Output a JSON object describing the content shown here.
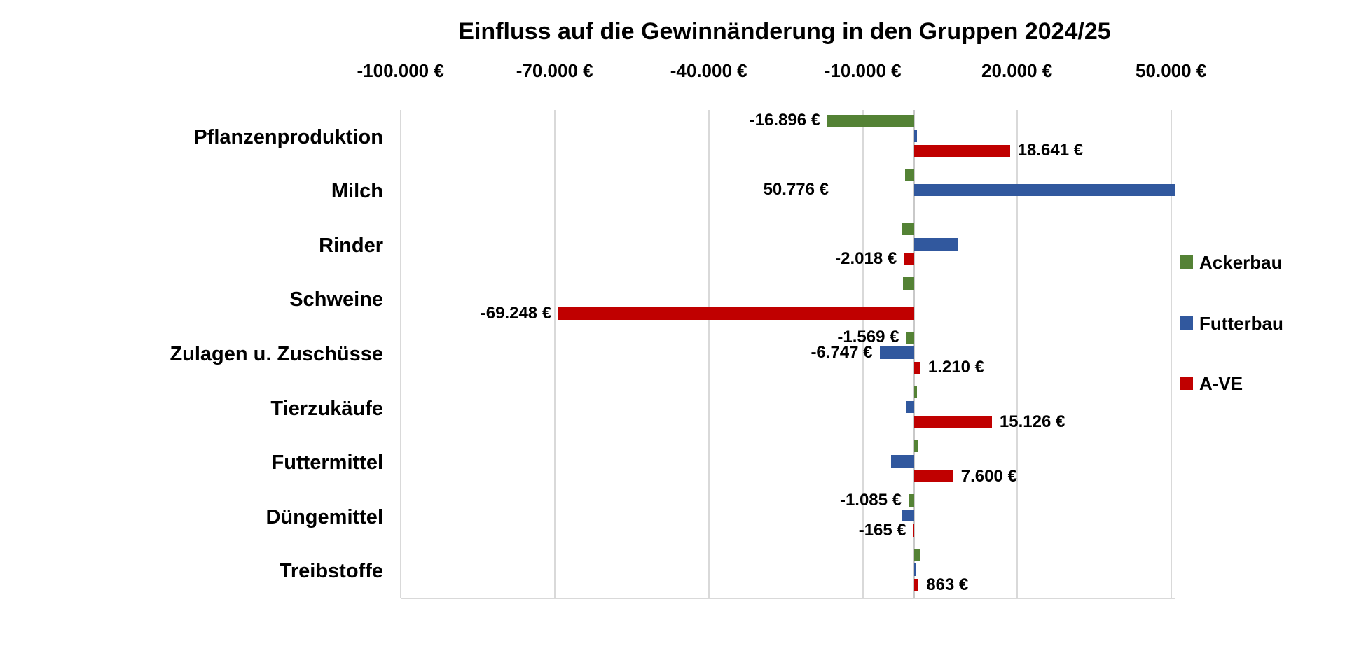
{
  "chart_data": {
    "type": "bar",
    "orientation": "horizontal",
    "title": "Einfluss auf die Gewinnänderung in den Gruppen 2024/25",
    "categories": [
      "Pflanzenproduktion",
      "Milch",
      "Rinder",
      "Schweine",
      "Zulagen u. Zuschüsse",
      "Tierzukäufe",
      "Futtermittel",
      "Düngemittel",
      "Treibstoffe"
    ],
    "series": [
      {
        "name": "Ackerbau",
        "color": "#548235",
        "values": [
          -16896,
          -1800,
          -2300,
          -2200,
          -1569,
          550,
          700,
          -1085,
          1100
        ],
        "labels": [
          "-16.896 €",
          null,
          null,
          null,
          "-1.569 €",
          null,
          null,
          "-1.085 €",
          null
        ],
        "label_sides": [
          "left",
          null,
          null,
          null,
          "left",
          null,
          null,
          "left",
          null
        ],
        "label_dx": [
          0,
          0,
          0,
          0,
          0,
          0,
          0,
          0,
          0
        ]
      },
      {
        "name": "Futterbau",
        "color": "#31589E",
        "values": [
          600,
          50776,
          8400,
          0,
          -6747,
          -1700,
          -4500,
          -2300,
          300
        ],
        "labels": [
          null,
          "50.776 €",
          null,
          null,
          "-6.747 €",
          null,
          null,
          null,
          null
        ],
        "label_sides": [
          null,
          "left",
          null,
          null,
          "left",
          null,
          null,
          null,
          null
        ],
        "label_dx": [
          0,
          -112,
          0,
          0,
          0,
          0,
          0,
          0,
          0
        ]
      },
      {
        "name": "A-VE",
        "color": "#C00000",
        "values": [
          18641,
          0,
          -2018,
          -69248,
          1210,
          15126,
          7600,
          -165,
          863
        ],
        "labels": [
          "18.641 €",
          null,
          "-2.018 €",
          "-69.248 €",
          "1.210 €",
          "15.126 €",
          "7.600 €",
          "-165 €",
          "863 €"
        ],
        "label_sides": [
          "right",
          null,
          "left",
          "left",
          "right",
          "right",
          "right",
          "left",
          "right"
        ],
        "label_dx": [
          0,
          0,
          0,
          0,
          0,
          0,
          0,
          0,
          0
        ]
      }
    ],
    "x_axis": {
      "ticks": [
        {
          "value": -100000,
          "label": "-100.000 €"
        },
        {
          "value": -70000,
          "label": "-70.000 €"
        },
        {
          "value": -40000,
          "label": "-40.000 €"
        },
        {
          "value": -10000,
          "label": "-10.000 €"
        },
        {
          "value": 20000,
          "label": "20.000 €"
        },
        {
          "value": 50000,
          "label": "50.000 €"
        }
      ],
      "range": [
        -100000,
        50776
      ],
      "unit": "€"
    },
    "legend": {
      "position": "right",
      "entries": [
        "Ackerbau",
        "Futterbau",
        "A-VE"
      ]
    },
    "grid": true,
    "style": {
      "gridline_color": "#D9D9D9",
      "zero_axis_color": "#C9C9C9",
      "text_color": "#000000",
      "background": "#FFFFFF"
    }
  }
}
